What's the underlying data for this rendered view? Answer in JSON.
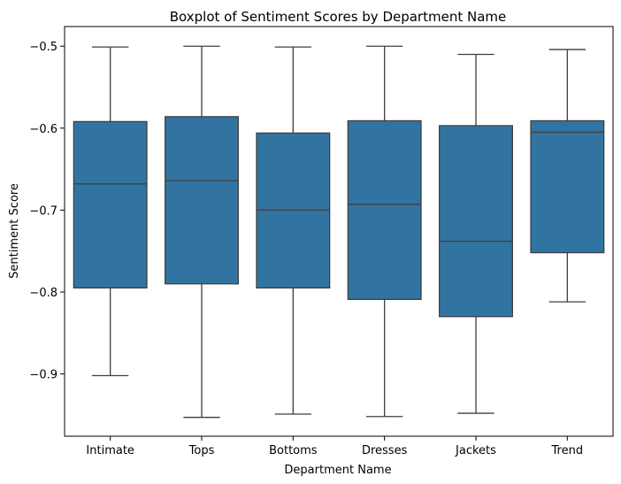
{
  "chart_data": {
    "type": "boxplot",
    "title": "Boxplot of Sentiment Scores by Department Name",
    "xlabel": "Department Name",
    "ylabel": "Sentiment Score",
    "ylim": [
      -0.976,
      -0.476
    ],
    "yticks": [
      -0.9,
      -0.8,
      -0.7,
      -0.6,
      -0.5
    ],
    "ytick_labels": [
      "−0.9",
      "−0.8",
      "−0.7",
      "−0.6",
      "−0.5"
    ],
    "categories": [
      "Intimate",
      "Tops",
      "Bottoms",
      "Dresses",
      "Jackets",
      "Trend"
    ],
    "box_color": "#3274a1",
    "line_color": "#3f3f3f",
    "grid": false,
    "boxes": [
      {
        "category": "Intimate",
        "whisker_low": -0.902,
        "q1": -0.795,
        "median": -0.668,
        "q3": -0.592,
        "whisker_high": -0.501
      },
      {
        "category": "Tops",
        "whisker_low": -0.953,
        "q1": -0.79,
        "median": -0.664,
        "q3": -0.586,
        "whisker_high": -0.5
      },
      {
        "category": "Bottoms",
        "whisker_low": -0.949,
        "q1": -0.795,
        "median": -0.7,
        "q3": -0.606,
        "whisker_high": -0.501
      },
      {
        "category": "Dresses",
        "whisker_low": -0.952,
        "q1": -0.809,
        "median": -0.693,
        "q3": -0.591,
        "whisker_high": -0.5
      },
      {
        "category": "Jackets",
        "whisker_low": -0.948,
        "q1": -0.83,
        "median": -0.738,
        "q3": -0.597,
        "whisker_high": -0.51
      },
      {
        "category": "Trend",
        "whisker_low": -0.812,
        "q1": -0.752,
        "median": -0.605,
        "q3": -0.591,
        "whisker_high": -0.504
      }
    ]
  }
}
